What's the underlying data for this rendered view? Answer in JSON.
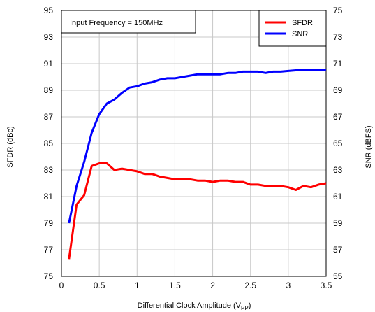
{
  "chart_data": {
    "type": "line",
    "annotation": "Input Frequency = 150MHz",
    "xlabel": "Differential Clock Amplitude (V",
    "xlabel_sub": "PP",
    "xlabel_end": ")",
    "ylabel_left": "SFDR (dBc)",
    "ylabel_right": "SNR (dBFS)",
    "xlim": [
      0,
      3.5
    ],
    "ylim_left": [
      75,
      95
    ],
    "ylim_right": [
      55,
      75
    ],
    "x_ticks": [
      0,
      0.5,
      1,
      1.5,
      2,
      2.5,
      3,
      3.5
    ],
    "x_tick_labels": [
      "0",
      "0.5",
      "1",
      "1.5",
      "2",
      "2.5",
      "3",
      "3.5"
    ],
    "left_ticks": [
      75,
      77,
      79,
      81,
      83,
      85,
      87,
      89,
      91,
      93,
      95
    ],
    "left_tick_labels": [
      "75",
      "77",
      "79",
      "81",
      "83",
      "85",
      "87",
      "89",
      "91",
      "93",
      "95"
    ],
    "right_ticks": [
      55,
      57,
      59,
      61,
      63,
      65,
      67,
      69,
      71,
      73,
      75
    ],
    "right_tick_labels": [
      "55",
      "57",
      "59",
      "61",
      "63",
      "65",
      "67",
      "69",
      "71",
      "73",
      "75"
    ],
    "grid": true,
    "legend": "top-right",
    "series": [
      {
        "name": "SFDR",
        "axis": "left",
        "color": "#ff0000",
        "x": [
          0.1,
          0.2,
          0.3,
          0.4,
          0.5,
          0.6,
          0.7,
          0.8,
          0.9,
          1.0,
          1.1,
          1.2,
          1.3,
          1.4,
          1.5,
          1.6,
          1.7,
          1.8,
          1.9,
          2.0,
          2.1,
          2.2,
          2.3,
          2.4,
          2.5,
          2.6,
          2.7,
          2.8,
          2.9,
          3.0,
          3.1,
          3.2,
          3.3,
          3.4,
          3.5
        ],
        "values": [
          76.3,
          80.4,
          81.1,
          83.3,
          83.5,
          83.5,
          83.0,
          83.1,
          83.0,
          82.9,
          82.7,
          82.7,
          82.5,
          82.4,
          82.3,
          82.3,
          82.3,
          82.2,
          82.2,
          82.1,
          82.2,
          82.2,
          82.1,
          82.1,
          81.9,
          81.9,
          81.8,
          81.8,
          81.8,
          81.7,
          81.5,
          81.8,
          81.7,
          81.9,
          82.0
        ]
      },
      {
        "name": "SNR",
        "axis": "right",
        "color": "#0000ff",
        "x": [
          0.1,
          0.2,
          0.3,
          0.4,
          0.5,
          0.6,
          0.7,
          0.8,
          0.9,
          1.0,
          1.1,
          1.2,
          1.3,
          1.4,
          1.5,
          1.6,
          1.7,
          1.8,
          1.9,
          2.0,
          2.1,
          2.2,
          2.3,
          2.4,
          2.5,
          2.6,
          2.7,
          2.8,
          2.9,
          3.0,
          3.1,
          3.2,
          3.3,
          3.4,
          3.5
        ],
        "values": [
          59.0,
          61.8,
          63.6,
          65.8,
          67.2,
          68.0,
          68.3,
          68.8,
          69.2,
          69.3,
          69.5,
          69.6,
          69.8,
          69.9,
          69.9,
          70.0,
          70.1,
          70.2,
          70.2,
          70.2,
          70.2,
          70.3,
          70.3,
          70.4,
          70.4,
          70.4,
          70.3,
          70.4,
          70.4,
          70.45,
          70.5,
          70.5,
          70.5,
          70.5,
          70.5
        ]
      }
    ]
  }
}
